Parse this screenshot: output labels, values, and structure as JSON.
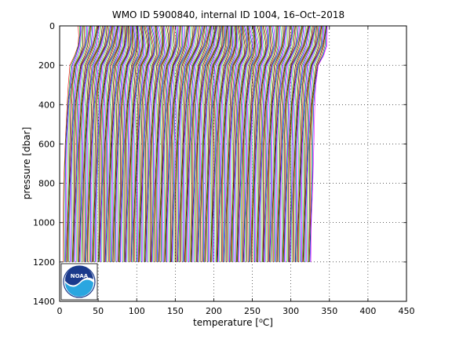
{
  "chart_data": {
    "type": "line",
    "title": "WMO ID 5900840, internal ID 1004, 16–Oct–2018",
    "xlabel": "temperature [",
    "xlabel_unit": "o",
    "xlabel_suffix": "C]",
    "ylabel": "pressure [dbar]",
    "xlim": [
      0,
      450
    ],
    "ylim": [
      0,
      1400
    ],
    "y_reversed": true,
    "x_ticks": [
      "0",
      "50",
      "100",
      "150",
      "200",
      "250",
      "300",
      "350",
      "400",
      "450"
    ],
    "y_ticks": [
      "0",
      "200",
      "400",
      "600",
      "800",
      "1000",
      "1200",
      "1400"
    ],
    "grid": "dotted",
    "profile_offset_step": 0.95,
    "profile_count": 340,
    "profile_pressures": [
      0,
      50,
      100,
      150,
      200,
      300,
      400,
      600,
      800,
      1000,
      1200
    ],
    "base_profile_temperature": [
      24,
      24,
      23.5,
      20,
      14,
      11,
      9,
      7,
      6,
      5,
      4.5
    ],
    "series_colors": [
      "#ff0000",
      "#00aa00",
      "#0000ff",
      "#ff00ff",
      "#00c0c0",
      "#c8c800",
      "#000000"
    ],
    "logo": {
      "text": "NOAA",
      "colors": [
        "#1a3a8c",
        "#2aa6e0",
        "#ffffff"
      ]
    }
  }
}
